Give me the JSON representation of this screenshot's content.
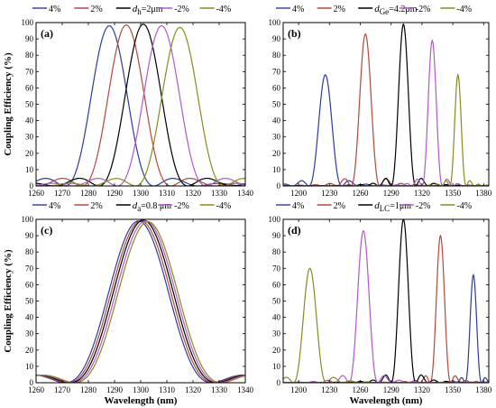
{
  "chart_data": [
    {
      "type": "line",
      "panel_label": "(a)",
      "ylabel": "Coupling Efficiency (%)",
      "xlabel": "",
      "xlim": [
        1260,
        1340
      ],
      "ylim": [
        0,
        100
      ],
      "xticks": [
        1260,
        1270,
        1280,
        1290,
        1300,
        1310,
        1320,
        1330,
        1340
      ],
      "yticks": [
        0,
        10,
        20,
        30,
        40,
        50,
        60,
        70,
        80,
        90,
        100
      ],
      "legend": [
        "4%",
        "2%",
        "d",
        "h",
        "=2μm",
        "-2%",
        "-4%"
      ],
      "series": [
        {
          "color": "#2e3aa0",
          "model": "sinc",
          "center": 1288,
          "peak": 98,
          "halfwidth": 17
        },
        {
          "color": "#b04a3a",
          "model": "sinc",
          "center": 1294.5,
          "peak": 98.5,
          "halfwidth": 17
        },
        {
          "color": "#000000",
          "model": "sinc",
          "center": 1301,
          "peak": 99,
          "halfwidth": 17
        },
        {
          "color": "#b05ac8",
          "model": "sinc",
          "center": 1308,
          "peak": 98,
          "halfwidth": 17
        },
        {
          "color": "#8a8a1e",
          "model": "sinc",
          "center": 1315,
          "peak": 97,
          "halfwidth": 17
        }
      ]
    },
    {
      "type": "line",
      "panel_label": "(b)",
      "ylabel": "",
      "xlabel": "",
      "xlim": [
        1185,
        1385
      ],
      "ylim": [
        0,
        100
      ],
      "xticks": [
        1200,
        1230,
        1260,
        1290,
        1320,
        1350,
        1380
      ],
      "yticks": [
        0,
        10,
        20,
        30,
        40,
        50,
        60,
        70,
        80,
        90,
        100
      ],
      "legend": [
        "4%",
        "2%",
        "d",
        "Ge",
        "=4.2μm",
        "-2%",
        "-4%"
      ],
      "series": [
        {
          "color": "#2e3aa0",
          "model": "sinc",
          "center": 1226,
          "peak": 68,
          "halfwidth": 16
        },
        {
          "color": "#b04a3a",
          "model": "sinc",
          "center": 1265,
          "peak": 93,
          "halfwidth": 14
        },
        {
          "color": "#000000",
          "model": "sinc",
          "center": 1302,
          "peak": 99,
          "halfwidth": 12
        },
        {
          "color": "#b05ac8",
          "model": "sinc",
          "center": 1330,
          "peak": 89,
          "halfwidth": 10
        },
        {
          "color": "#8a8a1e",
          "model": "sinc",
          "center": 1355,
          "peak": 68,
          "halfwidth": 8
        }
      ]
    },
    {
      "type": "line",
      "panel_label": "(c)",
      "ylabel": "Coupling Efficiency (%)",
      "xlabel": "Wavelength (nm)",
      "xlim": [
        1260,
        1340
      ],
      "ylim": [
        0,
        100
      ],
      "xticks": [
        1260,
        1270,
        1280,
        1290,
        1300,
        1310,
        1320,
        1330,
        1340
      ],
      "yticks": [
        0,
        10,
        20,
        30,
        40,
        50,
        60,
        70,
        80,
        90,
        100
      ],
      "legend": [
        "4%",
        "2%",
        "d",
        "a",
        "=0.8 μm",
        "-2%",
        "-4%"
      ],
      "series": [
        {
          "color": "#2e3aa0",
          "model": "sinc",
          "center": 1299.2,
          "peak": 99,
          "halfwidth": 28
        },
        {
          "color": "#b04a3a",
          "model": "sinc",
          "center": 1300.1,
          "peak": 99,
          "halfwidth": 28
        },
        {
          "color": "#000000",
          "model": "sinc",
          "center": 1301,
          "peak": 99.5,
          "halfwidth": 28
        },
        {
          "color": "#b05ac8",
          "model": "sinc",
          "center": 1301.9,
          "peak": 99,
          "halfwidth": 28
        },
        {
          "color": "#8a8a1e",
          "model": "sinc",
          "center": 1302.8,
          "peak": 98.5,
          "halfwidth": 28
        }
      ]
    },
    {
      "type": "line",
      "panel_label": "(d)",
      "ylabel": "",
      "xlabel": "Wavelength (nm)",
      "xlim": [
        1185,
        1385
      ],
      "ylim": [
        0,
        100
      ],
      "xticks": [
        1200,
        1230,
        1260,
        1290,
        1320,
        1350,
        1380
      ],
      "yticks": [
        0,
        10,
        20,
        30,
        40,
        50,
        60,
        70,
        80,
        90,
        100
      ],
      "legend": [
        "4%",
        "2%",
        "d",
        "LC",
        "=1μm",
        "-2%",
        "-4%"
      ],
      "series": [
        {
          "color": "#2e3aa0",
          "model": "sinc",
          "center": 1370,
          "peak": 66,
          "halfwidth": 8
        },
        {
          "color": "#b04a3a",
          "model": "sinc",
          "center": 1338,
          "peak": 90,
          "halfwidth": 10
        },
        {
          "color": "#000000",
          "model": "sinc",
          "center": 1302,
          "peak": 100,
          "halfwidth": 12
        },
        {
          "color": "#b05ac8",
          "model": "sinc",
          "center": 1263,
          "peak": 93,
          "halfwidth": 14
        },
        {
          "color": "#8a8a1e",
          "model": "sinc",
          "center": 1211,
          "peak": 70,
          "halfwidth": 16
        }
      ]
    }
  ]
}
